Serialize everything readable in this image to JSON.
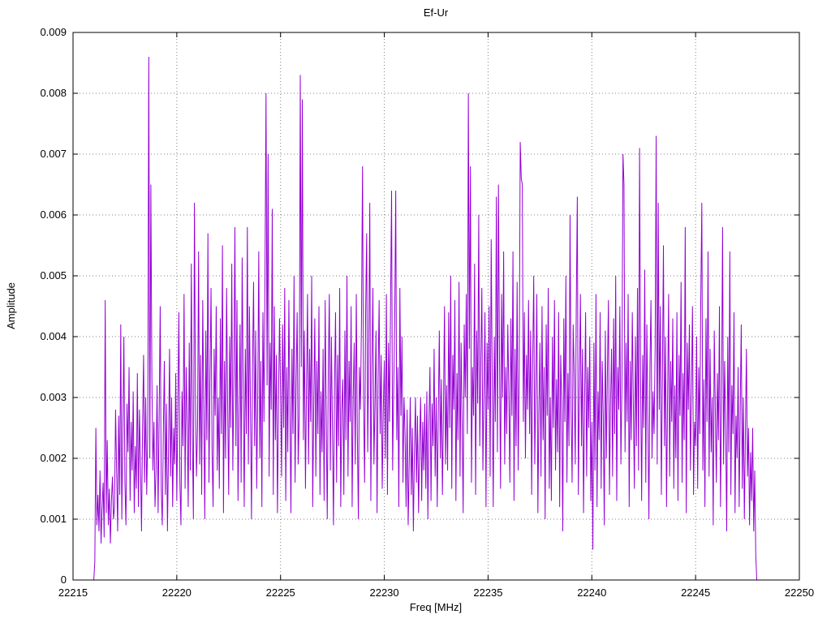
{
  "chart": {
    "title": "Ef-Ur",
    "xlabel": "Freq [MHz]",
    "ylabel": "Amplitude"
  },
  "chart_data": {
    "type": "line",
    "title": "Ef-Ur",
    "xlabel": "Freq [MHz]",
    "ylabel": "Amplitude",
    "xlim": [
      22215,
      22250
    ],
    "ylim": [
      0,
      0.009
    ],
    "x_ticks": [
      22215,
      22220,
      22225,
      22230,
      22235,
      22240,
      22245,
      22250
    ],
    "x_tick_labels": [
      "22215",
      "22220",
      "22225",
      "22230",
      "22235",
      "22240",
      "22245",
      "22250"
    ],
    "y_ticks": [
      0,
      0.001,
      0.002,
      0.003,
      0.004,
      0.005,
      0.006,
      0.007,
      0.008,
      0.009
    ],
    "y_tick_labels": [
      "0",
      "0.001",
      "0.002",
      "0.003",
      "0.004",
      "0.005",
      "0.006",
      "0.007",
      "0.008",
      "0.009"
    ],
    "grid": true,
    "legend_position": "none",
    "line_color": "#9400d3",
    "series": [
      {
        "name": "Ef-Ur",
        "x_start": 22216.0,
        "x_step": 0.05,
        "amplitude_unit": 0.0001,
        "values": [
          0,
          3,
          25,
          9,
          14,
          8,
          18,
          6,
          12,
          16,
          7,
          46,
          11,
          23,
          9,
          15,
          6,
          13,
          17,
          10,
          12,
          28,
          18,
          8,
          27,
          14,
          42,
          10,
          24,
          40,
          16,
          9,
          29,
          21,
          35,
          13,
          26,
          18,
          31,
          11,
          22,
          15,
          34,
          12,
          28,
          19,
          8,
          25,
          37,
          16,
          30,
          14,
          24,
          86,
          20,
          65,
          33,
          18,
          26,
          12,
          18,
          32,
          11,
          27,
          45,
          15,
          9,
          24,
          36,
          14,
          29,
          8,
          21,
          38,
          17,
          30,
          12,
          25,
          19,
          34,
          13,
          28,
          44,
          16,
          9,
          31,
          22,
          47,
          15,
          35,
          26,
          12,
          39,
          18,
          52,
          24,
          10,
          62,
          30,
          17,
          25,
          54,
          19,
          37,
          14,
          46,
          28,
          10,
          41,
          23,
          57,
          16,
          33,
          48,
          21,
          12,
          38,
          27,
          45,
          18,
          30,
          15,
          43,
          24,
          55,
          11,
          36,
          20,
          48,
          29,
          14,
          40,
          25,
          52,
          18,
          33,
          58,
          22,
          46,
          13,
          27,
          42,
          16,
          53,
          31,
          12,
          38,
          24,
          58,
          19,
          45,
          28,
          10,
          35,
          49,
          22,
          41,
          15,
          30,
          54,
          20,
          36,
          12,
          44,
          26,
          50,
          80,
          32,
          70,
          17,
          39,
          28,
          61,
          14,
          45,
          23,
          37,
          11,
          29,
          43,
          31,
          17,
          42,
          25,
          48,
          13,
          35,
          21,
          46,
          29,
          11,
          38,
          24,
          50,
          16,
          33,
          44,
          19,
          27,
          83,
          35,
          79,
          23,
          41,
          15,
          32,
          47,
          19,
          38,
          26,
          50,
          12,
          29,
          43,
          17,
          36,
          24,
          45,
          14,
          31,
          21,
          38,
          13,
          46,
          27,
          10,
          34,
          47,
          18,
          40,
          25,
          9,
          32,
          44,
          16,
          37,
          22,
          48,
          12,
          28,
          33,
          14,
          41,
          23,
          50,
          17,
          36,
          26,
          45,
          12,
          30,
          39,
          19,
          47,
          24,
          10,
          35,
          28,
          43,
          68,
          30,
          16,
          44,
          57,
          21,
          38,
          62,
          13,
          35,
          48,
          19,
          29,
          41,
          11,
          33,
          46,
          24,
          37,
          15,
          28,
          36,
          20,
          47,
          14,
          39,
          26,
          45,
          64,
          18,
          31,
          42,
          64,
          23,
          35,
          12,
          48,
          27,
          40,
          16,
          30,
          24,
          12,
          28,
          9,
          19,
          30,
          14,
          25,
          8,
          21,
          30,
          16,
          27,
          11,
          22,
          30,
          13,
          26,
          18,
          29,
          15,
          31,
          10,
          26,
          35,
          13,
          29,
          22,
          38,
          17,
          30,
          12,
          27,
          41,
          20,
          33,
          14,
          28,
          45,
          19,
          32,
          18,
          44,
          25,
          50,
          15,
          37,
          28,
          46,
          13,
          34,
          23,
          49,
          17,
          39,
          26,
          11,
          42,
          30,
          47,
          24,
          80,
          38,
          68,
          16,
          35,
          27,
          52,
          14,
          41,
          29,
          60,
          22,
          36,
          48,
          18,
          31,
          44,
          12,
          39,
          28,
          45,
          17,
          56,
          33,
          12,
          40,
          26,
          63,
          21,
          65,
          37,
          15,
          47,
          30,
          54,
          19,
          35,
          24,
          42,
          31,
          16,
          43,
          27,
          54,
          13,
          38,
          22,
          49,
          18,
          34,
          72,
          66,
          65,
          26,
          44,
          20,
          37,
          28,
          46,
          24,
          41,
          14,
          36,
          50,
          19,
          32,
          47,
          11,
          28,
          39,
          17,
          45,
          23,
          35,
          10,
          42,
          27,
          48,
          15,
          30,
          13,
          40,
          25,
          46,
          18,
          33,
          21,
          44,
          12,
          37,
          29,
          8,
          43,
          26,
          50,
          16,
          34,
          22,
          60,
          28,
          16,
          42,
          34,
          19,
          45,
          63,
          14,
          31,
          47,
          22,
          38,
          11,
          29,
          44,
          17,
          35,
          25,
          40,
          13,
          26,
          5,
          39,
          18,
          47,
          12,
          31,
          23,
          44,
          15,
          36,
          27,
          9,
          41,
          20,
          34,
          46,
          14,
          29,
          38,
          17,
          43,
          24,
          50,
          13,
          35,
          28,
          45,
          19,
          32,
          70,
          65,
          21,
          39,
          26,
          47,
          12,
          36,
          23,
          44,
          29,
          15,
          40,
          22,
          48,
          18,
          71,
          33,
          13,
          37,
          25,
          51,
          16,
          42,
          27,
          10,
          35,
          46,
          20,
          31,
          24,
          38,
          73,
          19,
          62,
          28,
          45,
          14,
          33,
          55,
          22,
          40,
          12,
          30,
          47,
          17,
          36,
          26,
          43,
          15,
          32,
          20,
          44,
          13,
          37,
          27,
          49,
          16,
          34,
          23,
          58,
          11,
          39,
          28,
          42,
          18,
          31,
          45,
          14,
          26,
          22,
          40,
          15,
          35,
          24,
          46,
          62,
          18,
          33,
          12,
          43,
          26,
          54,
          17,
          38,
          21,
          30,
          9,
          41,
          28,
          16,
          34,
          23,
          45,
          12,
          29,
          58,
          19,
          36,
          25,
          8,
          40,
          21,
          54,
          14,
          32,
          24,
          44,
          11,
          27,
          20,
          35,
          12,
          28,
          42,
          15,
          30,
          10,
          24,
          38,
          17,
          25,
          9,
          21,
          13,
          25,
          8,
          18,
          4,
          0
        ]
      }
    ]
  }
}
